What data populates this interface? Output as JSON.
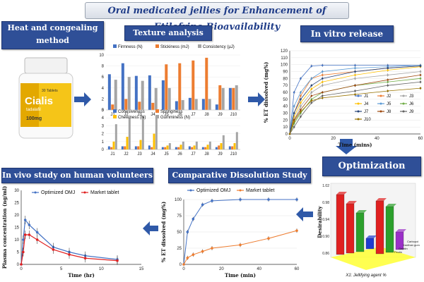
{
  "title": "Oral medicated jellies for Enhancement of Etilefrine Bioavailability",
  "sections": {
    "heat": "Heat and congealing method",
    "texture": "Texture analysis",
    "invitro": "In vitro release",
    "optimization": "Optimization",
    "comparative": "Comparative Dissolution Study",
    "invivo": "In vivo study on human volunteers"
  },
  "bottle": {
    "brand": "Cialis",
    "generic": "tadalafil",
    "dose": "100mg",
    "count": "30 Tablets"
  },
  "colors": {
    "blue": "#4472c4",
    "orange": "#ed7d31",
    "gray": "#a5a5a5",
    "yellow": "#ffc000",
    "red": "#e02020",
    "header": "#2f4f97"
  },
  "chart_data": [
    {
      "type": "bar",
      "categories": [
        "J1",
        "J2",
        "J3",
        "J4",
        "J5",
        "J6",
        "J7",
        "J8",
        "J9",
        "J10"
      ],
      "series": [
        {
          "name": "Firmness (N)",
          "values": [
            6.5,
            8.5,
            6.2,
            6.3,
            5.4,
            1.6,
            2.2,
            2.0,
            1.0,
            4.0
          ]
        },
        {
          "name": "Stickiness (mJ)",
          "values": [
            1.0,
            2.0,
            1.5,
            1.3,
            8.3,
            8.5,
            9.0,
            9.5,
            4.5,
            4.0
          ]
        },
        {
          "name": "Consistency (µJ)",
          "values": [
            5.5,
            6.0,
            5.3,
            4.0,
            4.0,
            1.8,
            2.0,
            2.0,
            4.0,
            4.5
          ]
        }
      ],
      "ylim": [
        0,
        10
      ],
      "yticks": [
        0,
        2,
        4,
        6,
        8,
        10
      ]
    },
    {
      "type": "bar",
      "categories": [
        "J1",
        "J2",
        "J3",
        "J4",
        "J5",
        "J6",
        "J7",
        "J8",
        "J9",
        "J10"
      ],
      "series": [
        {
          "name": "Cohesiveness",
          "values": [
            0.4,
            0.4,
            0.4,
            0.5,
            0.3,
            0.3,
            0.4,
            0.3,
            0.3,
            0.4
          ]
        },
        {
          "name": "Springiness",
          "values": [
            0.3,
            0.4,
            0.4,
            0.3,
            0.3,
            0.3,
            0.3,
            0.3,
            0.5,
            0.4
          ]
        },
        {
          "name": "Chewiness (N)",
          "values": [
            1.0,
            1.6,
            1.2,
            2.0,
            0.5,
            0.6,
            0.5,
            0.6,
            0.8,
            0.8
          ]
        },
        {
          "name": "Gumminess (N)",
          "values": [
            3.2,
            4.0,
            4.2,
            4.3,
            0.8,
            1.0,
            1.0,
            1.0,
            1.8,
            2.2
          ]
        }
      ],
      "ylim": [
        0,
        5
      ],
      "yticks": [
        0,
        1,
        2,
        3,
        4,
        5
      ]
    },
    {
      "type": "line",
      "x": [
        0,
        2,
        5,
        10,
        15,
        30,
        45,
        60
      ],
      "series": [
        {
          "name": "J1",
          "values": [
            0,
            60,
            80,
            98,
            99,
            99,
            99,
            99
          ]
        },
        {
          "name": "J2",
          "values": [
            0,
            30,
            55,
            80,
            85,
            90,
            95,
            98
          ]
        },
        {
          "name": "J3",
          "values": [
            0,
            20,
            40,
            60,
            70,
            80,
            85,
            90
          ]
        },
        {
          "name": "J4",
          "values": [
            0,
            25,
            45,
            65,
            75,
            85,
            92,
            97
          ]
        },
        {
          "name": "J5",
          "values": [
            0,
            40,
            60,
            80,
            90,
            95,
            97,
            99
          ]
        },
        {
          "name": "J6",
          "values": [
            0,
            15,
            30,
            50,
            60,
            70,
            75,
            80
          ]
        },
        {
          "name": "J7",
          "values": [
            0,
            30,
            50,
            70,
            80,
            90,
            95,
            98
          ]
        },
        {
          "name": "J8",
          "values": [
            0,
            20,
            35,
            55,
            60,
            70,
            78,
            85
          ]
        },
        {
          "name": "J9",
          "values": [
            0,
            10,
            25,
            45,
            55,
            62,
            70,
            75
          ]
        },
        {
          "name": "J10",
          "values": [
            0,
            18,
            32,
            48,
            52,
            57,
            62,
            66
          ]
        }
      ],
      "xlabel": "Time (mins)",
      "ylabel": "% ET dissolved (mg%)",
      "xlim": [
        0,
        60
      ],
      "ylim": [
        0,
        120
      ],
      "xticks": [
        0,
        20,
        40,
        60
      ],
      "yticks": [
        0,
        10,
        20,
        30,
        40,
        50,
        60,
        70,
        80,
        90,
        100,
        110,
        120
      ]
    },
    {
      "type": "line",
      "x": [
        0,
        2,
        5,
        10,
        15,
        30,
        45,
        60
      ],
      "series": [
        {
          "name": "Optimized OMJ",
          "values": [
            0,
            50,
            70,
            92,
            98,
            100,
            100,
            100
          ]
        },
        {
          "name": "Market tablet",
          "values": [
            0,
            10,
            15,
            20,
            25,
            30,
            40,
            52
          ]
        }
      ],
      "xlabel": "Time (min)",
      "ylabel": "% ET dissolved (mg%)",
      "xlim": [
        0,
        60
      ],
      "ylim": [
        0,
        100
      ],
      "xticks": [
        0,
        20,
        40,
        60
      ],
      "yticks": [
        0,
        25,
        50,
        75,
        100
      ]
    },
    {
      "type": "line",
      "x": [
        0,
        0.25,
        0.5,
        1,
        2,
        4,
        6,
        8,
        12
      ],
      "series": [
        {
          "name": "Optimized OMJ",
          "values": [
            0,
            10,
            18,
            16,
            13,
            7,
            5,
            3.5,
            2
          ]
        },
        {
          "name": "Market tablet",
          "values": [
            0,
            5,
            12,
            12,
            10,
            6,
            4,
            2.5,
            1.5
          ]
        }
      ],
      "xlabel": "Time (hr)",
      "ylabel": "Plasma concentration (ng/ml)",
      "xlim": [
        0,
        15
      ],
      "ylim": [
        0,
        30
      ],
      "xticks": [
        0,
        5,
        10,
        15
      ],
      "yticks": [
        0,
        5,
        10,
        15,
        20,
        25,
        30
      ]
    },
    {
      "type": "bar",
      "xlabel": "X1: Jellifying agent %",
      "ylabel": "Desirability",
      "yticks": [
        "0.86",
        "0.90",
        "0.94",
        "0.98",
        "1.02"
      ],
      "categories": [
        "Pectin",
        "Gelatin",
        "Xanthan gum",
        "Carbopol"
      ]
    }
  ]
}
